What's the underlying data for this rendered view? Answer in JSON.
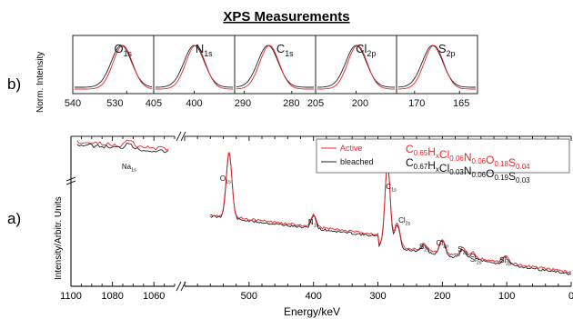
{
  "title": "XPS Measurements",
  "panel_b": {
    "label": "b)",
    "ylabel": "Norm. Intensity",
    "subplots": [
      {
        "name": "O",
        "sub": "1s",
        "ticks": [
          "540",
          "530"
        ],
        "extra_ticks": [
          "",
          "530"
        ]
      },
      {
        "name": "N",
        "sub": "1s",
        "ticks": [
          "405",
          "400"
        ]
      },
      {
        "name": "C",
        "sub": "1s",
        "ticks": [
          "290",
          "280"
        ]
      },
      {
        "name": "Cl",
        "sub": "2p",
        "ticks": [
          "205",
          "200"
        ]
      },
      {
        "name": "S",
        "sub": "2p",
        "ticks": [
          "170",
          "165"
        ]
      }
    ]
  },
  "panel_a": {
    "label": "a)",
    "ylabel": "Intensity/Arbitr. Units",
    "xlabel": "Energy/keV",
    "xticks_left": [
      "1100",
      "1080",
      "1060"
    ],
    "xticks_right": [
      "500",
      "400",
      "300",
      "200",
      "100",
      "0"
    ],
    "peak_labels": [
      {
        "name": "Na",
        "sub": "1s"
      },
      {
        "name": "O",
        "sub": "1s"
      },
      {
        "name": "N",
        "sub": "1s"
      },
      {
        "name": "C",
        "sub": "1s"
      },
      {
        "name": "Cl",
        "sub": "2s"
      },
      {
        "name": "S",
        "sub": "2s"
      },
      {
        "name": "Cl",
        "sub": "2p"
      },
      {
        "name": "S",
        "sub": "2p"
      },
      {
        "name": "Si",
        "sub": "2s"
      },
      {
        "name": "Si",
        "sub": "2p"
      }
    ],
    "legend": [
      {
        "name": "Active",
        "color": "#e8262a",
        "formula": [
          [
            "C",
            "0.65"
          ],
          [
            "H",
            "x"
          ],
          [
            "Cl",
            "0.06"
          ],
          [
            "N",
            "0.06"
          ],
          [
            "O",
            "0.18"
          ],
          [
            "S",
            "0.04"
          ]
        ]
      },
      {
        "name": "bleached",
        "color": "#222222",
        "formula": [
          [
            "C",
            "0.67"
          ],
          [
            "H",
            "x"
          ],
          [
            "Cl",
            "0.03"
          ],
          [
            "N",
            "0.06"
          ],
          [
            "O",
            "0.19"
          ],
          [
            "S",
            "0.03"
          ]
        ]
      }
    ]
  },
  "chart_data": [
    {
      "type": "line",
      "panel": "b",
      "subplots": [
        {
          "element": "O1s",
          "xlim": [
            540,
            525
          ],
          "peak": 531,
          "series": [
            {
              "name": "Active",
              "color": "#e8262a"
            },
            {
              "name": "bleached",
              "color": "#222222"
            }
          ]
        },
        {
          "element": "N1s",
          "xlim": [
            405,
            395
          ],
          "peak": 400,
          "series": [
            {
              "name": "Active",
              "color": "#e8262a"
            },
            {
              "name": "bleached",
              "color": "#222222"
            }
          ]
        },
        {
          "element": "C1s",
          "xlim": [
            292,
            275
          ],
          "peak": 285,
          "series": [
            {
              "name": "Active",
              "color": "#e8262a"
            },
            {
              "name": "bleached",
              "color": "#222222"
            }
          ]
        },
        {
          "element": "Cl2p",
          "xlim": [
            205,
            195
          ],
          "peak": 200,
          "series": [
            {
              "name": "Active",
              "color": "#e8262a"
            },
            {
              "name": "bleached",
              "color": "#222222"
            }
          ]
        },
        {
          "element": "S2p",
          "xlim": [
            172,
            163
          ],
          "peak": 168,
          "series": [
            {
              "name": "Active",
              "color": "#e8262a"
            },
            {
              "name": "bleached",
              "color": "#222222"
            }
          ]
        }
      ]
    },
    {
      "type": "line",
      "panel": "a",
      "xlim_left": [
        1100,
        1050
      ],
      "xlim_right": [
        600,
        0
      ],
      "peaks": [
        {
          "label": "Na1s",
          "x": 1072
        },
        {
          "label": "O1s",
          "x": 531
        },
        {
          "label": "N1s",
          "x": 400
        },
        {
          "label": "C1s",
          "x": 285
        },
        {
          "label": "Cl2s",
          "x": 270
        },
        {
          "label": "S2s",
          "x": 228
        },
        {
          "label": "Cl2p",
          "x": 200
        },
        {
          "label": "S2p",
          "x": 168
        },
        {
          "label": "Si2s",
          "x": 153
        },
        {
          "label": "Si2p",
          "x": 102
        }
      ],
      "series": [
        {
          "name": "Active",
          "color": "#e8262a"
        },
        {
          "name": "bleached",
          "color": "#222222"
        }
      ]
    }
  ]
}
